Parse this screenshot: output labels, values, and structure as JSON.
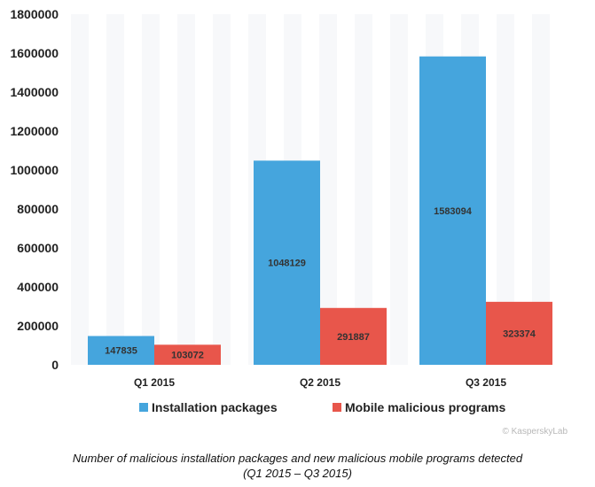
{
  "chart_data": {
    "type": "bar",
    "categories": [
      "Q1 2015",
      "Q2 2015",
      "Q3 2015"
    ],
    "series": [
      {
        "name": "Installation packages",
        "color": "#45a5dd",
        "values": [
          147835,
          1048129,
          1583094
        ],
        "labels": [
          "147835",
          "1048129",
          "1583094"
        ]
      },
      {
        "name": "Mobile malicious programs",
        "color": "#e8564b",
        "values": [
          103072,
          291887,
          323374
        ],
        "labels": [
          "103072",
          "291887",
          "323374"
        ]
      }
    ],
    "ylim": [
      0,
      1800000
    ],
    "yticks": [
      0,
      200000,
      400000,
      600000,
      800000,
      1000000,
      1200000,
      1400000,
      1600000,
      1800000
    ],
    "ytick_labels": [
      "0",
      "200000",
      "400000",
      "600000",
      "800000",
      "1000000",
      "1200000",
      "1400000",
      "1600000",
      "1800000"
    ],
    "grid": "vertical light bands",
    "legend_position": "bottom-center",
    "title": "",
    "xlabel": "",
    "ylabel": ""
  },
  "watermark": "© KasperskyLab",
  "caption": {
    "line1": "Number of malicious installation packages and new malicious mobile programs detected",
    "line2": "(Q1 2015 – Q3 2015)"
  }
}
